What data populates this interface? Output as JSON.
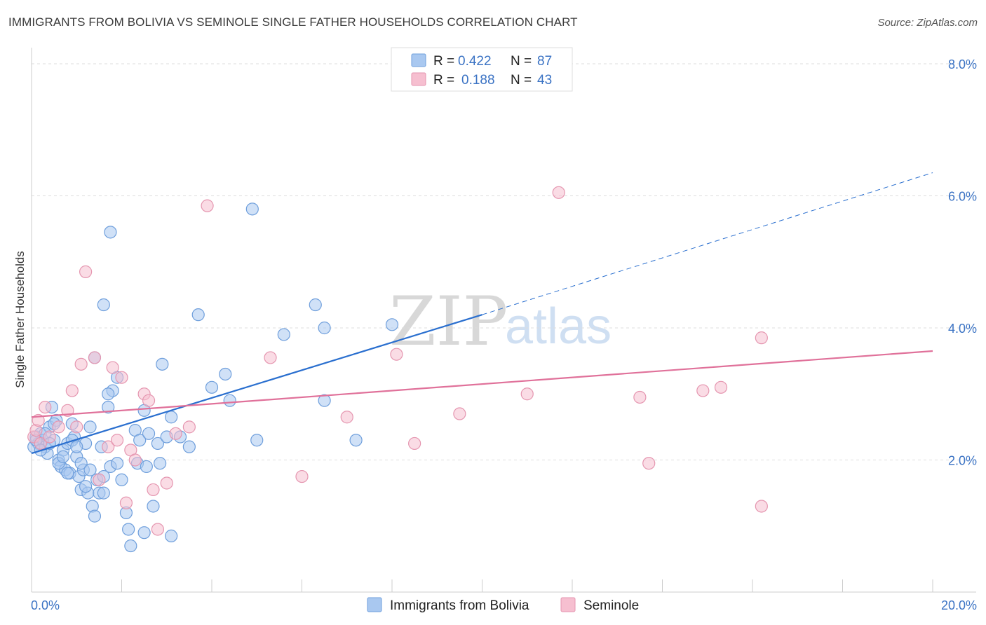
{
  "title": "IMMIGRANTS FROM BOLIVIA VS SEMINOLE SINGLE FATHER HOUSEHOLDS CORRELATION CHART",
  "source": "Source: ZipAtlas.com",
  "watermark": {
    "zip": "ZIP",
    "atlas": "atlas"
  },
  "colors": {
    "blue_fill": "#a9c8f0",
    "blue_stroke": "#6f9fdc",
    "blue_line": "#2a6fcf",
    "pink_fill": "#f6bfd0",
    "pink_stroke": "#e596b0",
    "pink_line": "#e0719a",
    "grid": "#dddddd",
    "tick_text": "#3b73c4"
  },
  "legend": {
    "rows": [
      {
        "r_label": "R =",
        "r_value": "0.422",
        "n_label": "N =",
        "n_value": "87"
      },
      {
        "r_label": "R =",
        "r_value": "0.188",
        "n_label": "N =",
        "n_value": "43"
      }
    ]
  },
  "chart_data": {
    "type": "scatter",
    "title": "IMMIGRANTS FROM BOLIVIA VS SEMINOLE SINGLE FATHER HOUSEHOLDS CORRELATION CHART",
    "xlabel": "",
    "ylabel": "Single Father Households",
    "xlim": [
      0,
      20
    ],
    "ylim": [
      0,
      8
    ],
    "x_ticks": [
      "0.0%",
      "20.0%"
    ],
    "y_ticks": [
      "2.0%",
      "4.0%",
      "6.0%",
      "8.0%"
    ],
    "y_tick_values": [
      2,
      4,
      6,
      8
    ],
    "grid": true,
    "legend_position": "top-center",
    "series": [
      {
        "name": "Immigrants from Bolivia",
        "color": "#a9c8f0",
        "trend": {
          "x": [
            0,
            10
          ],
          "y": [
            2.1,
            4.2
          ],
          "dashed_extension": {
            "x": [
              10,
              20
            ],
            "y": [
              4.2,
              6.35
            ]
          }
        },
        "points": [
          [
            0.1,
            2.35
          ],
          [
            0.15,
            2.25
          ],
          [
            0.2,
            2.4
          ],
          [
            0.25,
            2.3
          ],
          [
            0.3,
            2.2
          ],
          [
            0.35,
            2.1
          ],
          [
            0.4,
            2.5
          ],
          [
            0.45,
            2.8
          ],
          [
            0.5,
            2.3
          ],
          [
            0.55,
            2.6
          ],
          [
            0.6,
            2.0
          ],
          [
            0.65,
            1.9
          ],
          [
            0.7,
            2.15
          ],
          [
            0.75,
            1.85
          ],
          [
            0.8,
            2.25
          ],
          [
            0.85,
            1.8
          ],
          [
            0.9,
            2.55
          ],
          [
            0.95,
            2.35
          ],
          [
            1.0,
            2.05
          ],
          [
            1.05,
            1.75
          ],
          [
            1.1,
            1.55
          ],
          [
            1.15,
            1.85
          ],
          [
            1.2,
            2.25
          ],
          [
            1.25,
            1.5
          ],
          [
            1.3,
            2.5
          ],
          [
            1.35,
            1.3
          ],
          [
            1.4,
            1.15
          ],
          [
            1.45,
            1.7
          ],
          [
            1.5,
            1.5
          ],
          [
            1.55,
            2.2
          ],
          [
            1.6,
            1.75
          ],
          [
            1.7,
            2.8
          ],
          [
            1.75,
            1.9
          ],
          [
            1.8,
            3.05
          ],
          [
            1.9,
            1.95
          ],
          [
            2.0,
            1.7
          ],
          [
            2.1,
            1.2
          ],
          [
            2.15,
            0.95
          ],
          [
            2.2,
            0.7
          ],
          [
            2.3,
            2.45
          ],
          [
            2.35,
            1.95
          ],
          [
            2.4,
            2.3
          ],
          [
            2.5,
            2.75
          ],
          [
            2.55,
            1.9
          ],
          [
            2.6,
            2.4
          ],
          [
            2.7,
            1.3
          ],
          [
            2.8,
            2.25
          ],
          [
            2.85,
            1.95
          ],
          [
            2.9,
            3.45
          ],
          [
            3.0,
            2.35
          ],
          [
            3.1,
            2.65
          ],
          [
            3.3,
            2.35
          ],
          [
            3.5,
            2.2
          ],
          [
            1.4,
            3.55
          ],
          [
            1.7,
            3.0
          ],
          [
            1.9,
            3.25
          ],
          [
            1.75,
            5.45
          ],
          [
            1.6,
            4.35
          ],
          [
            3.7,
            4.2
          ],
          [
            4.0,
            3.1
          ],
          [
            4.3,
            3.3
          ],
          [
            4.4,
            2.9
          ],
          [
            4.9,
            5.8
          ],
          [
            5.0,
            2.3
          ],
          [
            5.6,
            3.9
          ],
          [
            6.3,
            4.35
          ],
          [
            6.5,
            4.0
          ],
          [
            6.5,
            2.9
          ],
          [
            7.2,
            2.3
          ],
          [
            8.0,
            4.05
          ],
          [
            0.05,
            2.2
          ],
          [
            0.1,
            2.3
          ],
          [
            0.2,
            2.15
          ],
          [
            0.3,
            2.4
          ],
          [
            0.4,
            2.25
          ],
          [
            0.5,
            2.55
          ],
          [
            0.6,
            1.95
          ],
          [
            0.7,
            2.05
          ],
          [
            0.8,
            1.8
          ],
          [
            0.9,
            2.3
          ],
          [
            1.0,
            2.2
          ],
          [
            1.1,
            1.95
          ],
          [
            1.2,
            1.6
          ],
          [
            1.3,
            1.85
          ],
          [
            1.6,
            1.5
          ],
          [
            2.5,
            0.9
          ],
          [
            3.1,
            0.85
          ]
        ]
      },
      {
        "name": "Seminole",
        "color": "#f6bfd0",
        "trend": {
          "x": [
            0,
            20
          ],
          "y": [
            2.65,
            3.65
          ]
        },
        "points": [
          [
            0.05,
            2.35
          ],
          [
            0.1,
            2.45
          ],
          [
            0.15,
            2.6
          ],
          [
            0.2,
            2.25
          ],
          [
            0.3,
            2.8
          ],
          [
            0.4,
            2.35
          ],
          [
            0.6,
            2.5
          ],
          [
            0.8,
            2.75
          ],
          [
            0.9,
            3.05
          ],
          [
            1.0,
            2.5
          ],
          [
            1.1,
            3.45
          ],
          [
            1.2,
            4.85
          ],
          [
            1.4,
            3.55
          ],
          [
            1.5,
            1.7
          ],
          [
            1.7,
            2.2
          ],
          [
            1.8,
            3.4
          ],
          [
            1.9,
            2.3
          ],
          [
            2.0,
            3.25
          ],
          [
            2.1,
            1.35
          ],
          [
            2.2,
            2.15
          ],
          [
            2.3,
            2.0
          ],
          [
            2.5,
            3.0
          ],
          [
            2.6,
            2.9
          ],
          [
            2.7,
            1.55
          ],
          [
            2.8,
            0.95
          ],
          [
            3.0,
            1.65
          ],
          [
            3.2,
            2.4
          ],
          [
            3.5,
            2.5
          ],
          [
            3.9,
            5.85
          ],
          [
            5.3,
            3.55
          ],
          [
            6.0,
            1.75
          ],
          [
            7.0,
            2.65
          ],
          [
            8.1,
            3.6
          ],
          [
            8.5,
            2.25
          ],
          [
            9.5,
            2.7
          ],
          [
            11.0,
            3.0
          ],
          [
            11.7,
            6.05
          ],
          [
            13.5,
            2.95
          ],
          [
            13.7,
            1.95
          ],
          [
            14.9,
            3.05
          ],
          [
            15.3,
            3.1
          ],
          [
            16.2,
            3.85
          ],
          [
            16.2,
            1.3
          ]
        ]
      }
    ]
  }
}
